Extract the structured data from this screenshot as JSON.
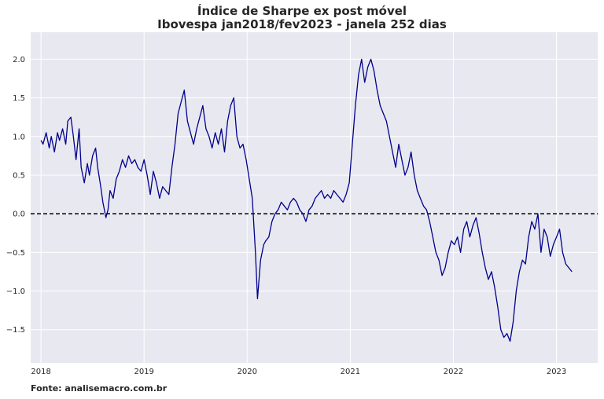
{
  "chart_data": {
    "type": "line",
    "title": "Índice de Sharpe ex post móvel",
    "subtitle": "Ibovespa jan2018/fev2023 - janela 252 dias",
    "xlabel": "",
    "ylabel": "",
    "xlim": [
      2017.9,
      2023.4
    ],
    "ylim": [
      -1.93,
      2.35
    ],
    "x_ticks": [
      2018,
      2019,
      2020,
      2021,
      2022,
      2023
    ],
    "x_tick_labels": [
      "2018",
      "2019",
      "2020",
      "2021",
      "2022",
      "2023"
    ],
    "y_ticks": [
      -1.5,
      -1.0,
      -0.5,
      0.0,
      0.5,
      1.0,
      1.5,
      2.0
    ],
    "y_tick_labels": [
      "−1.5",
      "−1.0",
      "−0.5",
      "0.0",
      "0.5",
      "1.0",
      "1.5",
      "2.0"
    ],
    "grid": true,
    "background_color": "#e8e8f1",
    "line_color": "#00008b",
    "reference_line": {
      "y": 0.0,
      "style": "dashed",
      "color": "#000000"
    },
    "series": [
      {
        "x": [
          2018.0,
          2018.02,
          2018.05,
          2018.08,
          2018.1,
          2018.13,
          2018.16,
          2018.18,
          2018.21,
          2018.24,
          2018.26,
          2018.29,
          2018.31,
          2018.34,
          2018.37,
          2018.39,
          2018.42,
          2018.45,
          2018.47,
          2018.5,
          2018.53,
          2018.55,
          2018.58,
          2018.6,
          2018.63,
          2018.65,
          2018.67,
          2018.7,
          2018.73,
          2018.76,
          2018.79,
          2018.82,
          2018.85,
          2018.88,
          2018.91,
          2018.94,
          2018.97,
          2019.0,
          2019.03,
          2019.06,
          2019.09,
          2019.12,
          2019.15,
          2019.18,
          2019.21,
          2019.24,
          2019.27,
          2019.3,
          2019.33,
          2019.36,
          2019.39,
          2019.42,
          2019.45,
          2019.48,
          2019.51,
          2019.54,
          2019.57,
          2019.6,
          2019.63,
          2019.66,
          2019.69,
          2019.72,
          2019.75,
          2019.78,
          2019.81,
          2019.84,
          2019.87,
          2019.9,
          2019.93,
          2019.96,
          2019.99,
          2020.02,
          2020.05,
          2020.08,
          2020.1,
          2020.13,
          2020.16,
          2020.18,
          2020.21,
          2020.24,
          2020.27,
          2020.3,
          2020.33,
          2020.36,
          2020.39,
          2020.42,
          2020.45,
          2020.48,
          2020.51,
          2020.54,
          2020.57,
          2020.6,
          2020.63,
          2020.66,
          2020.69,
          2020.72,
          2020.75,
          2020.78,
          2020.81,
          2020.84,
          2020.87,
          2020.9,
          2020.93,
          2020.96,
          2020.99,
          2021.02,
          2021.05,
          2021.08,
          2021.11,
          2021.14,
          2021.17,
          2021.2,
          2021.23,
          2021.26,
          2021.29,
          2021.32,
          2021.35,
          2021.38,
          2021.41,
          2021.44,
          2021.47,
          2021.5,
          2021.53,
          2021.56,
          2021.59,
          2021.62,
          2021.65,
          2021.68,
          2021.71,
          2021.74,
          2021.77,
          2021.8,
          2021.83,
          2021.86,
          2021.89,
          2021.92,
          2021.95,
          2021.98,
          2022.01,
          2022.04,
          2022.07,
          2022.1,
          2022.13,
          2022.16,
          2022.19,
          2022.22,
          2022.25,
          2022.28,
          2022.31,
          2022.34,
          2022.37,
          2022.4,
          2022.43,
          2022.46,
          2022.49,
          2022.52,
          2022.55,
          2022.58,
          2022.61,
          2022.64,
          2022.67,
          2022.7,
          2022.73,
          2022.76,
          2022.79,
          2022.82,
          2022.85,
          2022.88,
          2022.91,
          2022.94,
          2022.97,
          2023.0,
          2023.03,
          2023.06,
          2023.09,
          2023.12,
          2023.15
        ],
        "y": [
          0.95,
          0.9,
          1.05,
          0.85,
          1.0,
          0.8,
          1.05,
          0.95,
          1.1,
          0.9,
          1.2,
          1.25,
          1.05,
          0.7,
          1.1,
          0.6,
          0.4,
          0.65,
          0.5,
          0.75,
          0.85,
          0.6,
          0.35,
          0.15,
          -0.05,
          0.05,
          0.3,
          0.2,
          0.45,
          0.55,
          0.7,
          0.6,
          0.75,
          0.65,
          0.7,
          0.6,
          0.55,
          0.7,
          0.5,
          0.25,
          0.55,
          0.4,
          0.2,
          0.35,
          0.3,
          0.25,
          0.6,
          0.9,
          1.3,
          1.45,
          1.6,
          1.2,
          1.05,
          0.9,
          1.1,
          1.25,
          1.4,
          1.1,
          1.0,
          0.85,
          1.05,
          0.9,
          1.1,
          0.8,
          1.2,
          1.4,
          1.5,
          1.0,
          0.85,
          0.9,
          0.7,
          0.45,
          0.2,
          -0.5,
          -1.1,
          -0.6,
          -0.4,
          -0.35,
          -0.3,
          -0.1,
          0.0,
          0.05,
          0.15,
          0.1,
          0.05,
          0.15,
          0.2,
          0.15,
          0.05,
          0.0,
          -0.1,
          0.05,
          0.1,
          0.2,
          0.25,
          0.3,
          0.2,
          0.25,
          0.2,
          0.3,
          0.25,
          0.2,
          0.15,
          0.25,
          0.4,
          0.9,
          1.4,
          1.8,
          2.0,
          1.7,
          1.9,
          2.0,
          1.85,
          1.6,
          1.4,
          1.3,
          1.2,
          1.0,
          0.8,
          0.6,
          0.9,
          0.7,
          0.5,
          0.6,
          0.8,
          0.5,
          0.3,
          0.2,
          0.1,
          0.05,
          -0.1,
          -0.3,
          -0.5,
          -0.6,
          -0.8,
          -0.7,
          -0.5,
          -0.35,
          -0.4,
          -0.3,
          -0.5,
          -0.2,
          -0.1,
          -0.3,
          -0.15,
          -0.05,
          -0.25,
          -0.5,
          -0.7,
          -0.85,
          -0.75,
          -0.95,
          -1.2,
          -1.5,
          -1.6,
          -1.55,
          -1.65,
          -1.4,
          -1.0,
          -0.75,
          -0.6,
          -0.65,
          -0.3,
          -0.1,
          -0.2,
          0.0,
          -0.5,
          -0.2,
          -0.3,
          -0.55,
          -0.4,
          -0.3,
          -0.2,
          -0.5,
          -0.65,
          -0.7,
          -0.75
        ]
      }
    ],
    "source": "Fonte: analisemacro.com.br"
  }
}
